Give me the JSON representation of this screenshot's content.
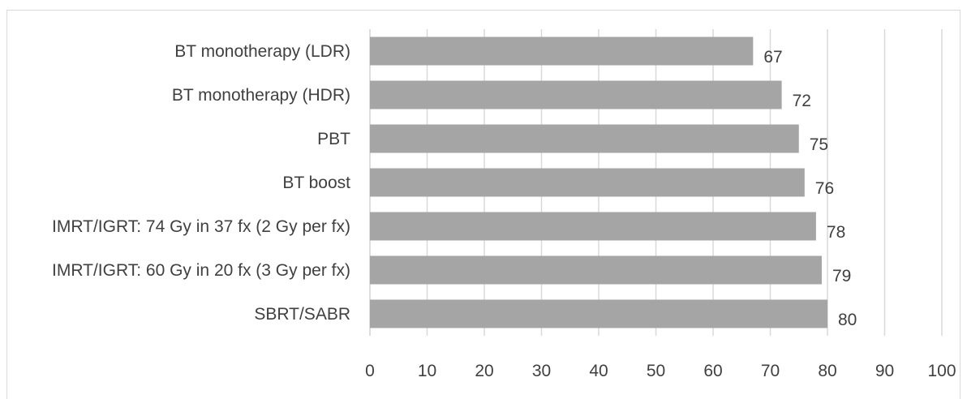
{
  "chart_data": {
    "type": "bar",
    "orientation": "horizontal",
    "categories": [
      "BT monotherapy (LDR)",
      "BT monotherapy (HDR)",
      "PBT",
      "BT boost",
      "IMRT/IGRT: 74 Gy in 37 fx (2 Gy per fx)",
      "IMRT/IGRT: 60 Gy in 20 fx (3 Gy per fx)",
      "SBRT/SABR"
    ],
    "values": [
      67,
      72,
      75,
      76,
      78,
      79,
      80
    ],
    "data_labels": [
      "67",
      "72",
      "75",
      "76",
      "78",
      "79",
      "80"
    ],
    "title": "",
    "xlabel": "",
    "ylabel": "",
    "xlim": [
      0,
      100
    ],
    "x_ticks": [
      0,
      10,
      20,
      30,
      40,
      50,
      60,
      70,
      80,
      90,
      100
    ],
    "x_tick_labels": [
      "0",
      "10",
      "20",
      "30",
      "40",
      "50",
      "60",
      "70",
      "80",
      "90",
      "100"
    ],
    "grid": "vertical",
    "legend": "none",
    "colors": {
      "bar": "#a5a5a5",
      "grid": "#d9d9d9",
      "text": "#404040"
    }
  }
}
